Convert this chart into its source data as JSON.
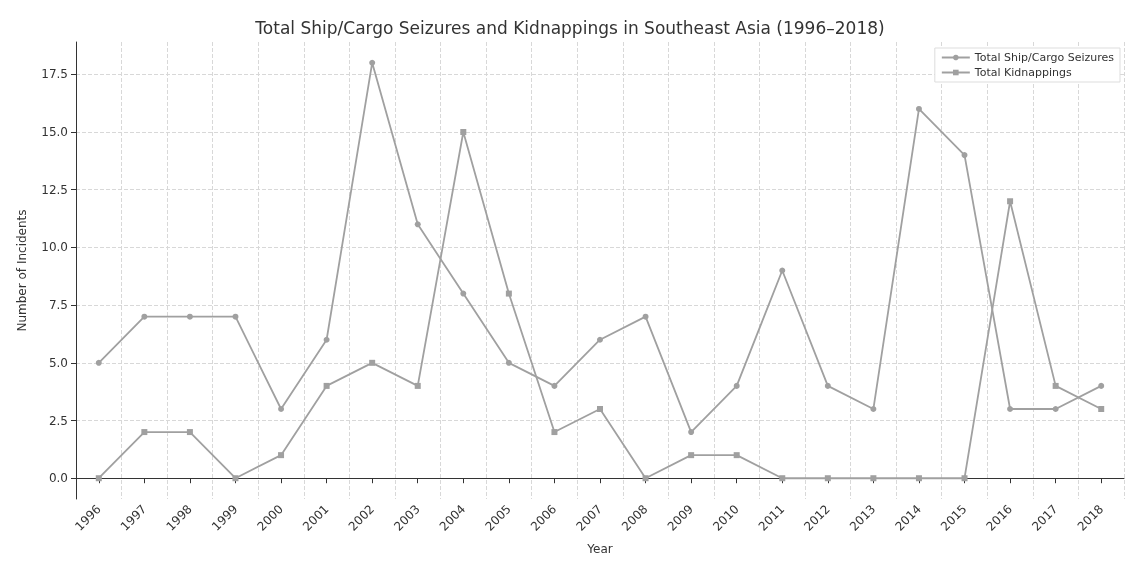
{
  "chart_data": {
    "type": "line",
    "title": "Total Ship/Cargo Seizures and Kidnappings in Southeast Asia (1996–2018)",
    "xlabel": "Year",
    "ylabel": "Number of Incidents",
    "categories": [
      "1996",
      "1997",
      "1998",
      "1999",
      "2000",
      "2001",
      "2002",
      "2003",
      "2004",
      "2005",
      "2006",
      "2007",
      "2008",
      "2009",
      "2010",
      "2011",
      "2012",
      "2013",
      "2014",
      "2015",
      "2016",
      "2017",
      "2018"
    ],
    "series": [
      {
        "name": "Total Ship/Cargo Seizures",
        "color": "#a0a0a0",
        "marker": "circle",
        "values": [
          5,
          7,
          7,
          7,
          3,
          6,
          18,
          11,
          8,
          5,
          4,
          6,
          7,
          2,
          4,
          9,
          4,
          3,
          16,
          14,
          3,
          3,
          4
        ]
      },
      {
        "name": "Total Kidnappings",
        "color": "#a0a0a0",
        "marker": "square",
        "values": [
          0,
          2,
          2,
          0,
          1,
          4,
          5,
          4,
          15,
          8,
          2,
          3,
          0,
          1,
          1,
          0,
          0,
          0,
          0,
          0,
          12,
          4,
          3
        ]
      }
    ],
    "ylim": [
      -0.9,
      18.9
    ],
    "yticks": [
      {
        "value": 0,
        "label": "0.0"
      },
      {
        "value": 2.5,
        "label": "2.5"
      },
      {
        "value": 5,
        "label": "5.0"
      },
      {
        "value": 7.5,
        "label": "7.5"
      },
      {
        "value": 10,
        "label": "10.0"
      },
      {
        "value": 12.5,
        "label": "12.5"
      },
      {
        "value": 15,
        "label": "15.0"
      },
      {
        "value": 17.5,
        "label": "17.5"
      }
    ],
    "grid": true,
    "legend": "top right",
    "line_style": "solid"
  }
}
